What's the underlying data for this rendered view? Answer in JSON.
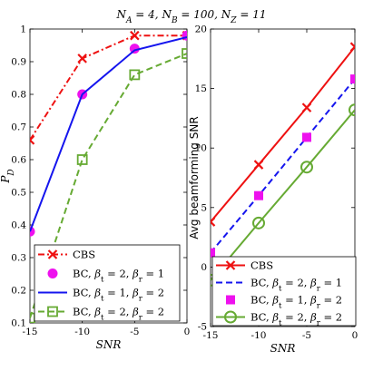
{
  "suptitle": "N_A = 4, N_B = 100, N_Z = 11",
  "chart_data": [
    {
      "type": "line",
      "xlabel": "SNR",
      "ylabel": "P_D",
      "xlim": [
        -15,
        0
      ],
      "ylim": [
        0.1,
        1.0
      ],
      "xticks": [
        "-15",
        "-10",
        "-5",
        "0"
      ],
      "yticks": [
        "0.1",
        "0.2",
        "0.3",
        "0.4",
        "0.5",
        "0.6",
        "0.7",
        "0.8",
        "0.9",
        "1"
      ],
      "grid": false,
      "legend_placement": "bottom-right",
      "x": [
        -15,
        -10,
        -5,
        0
      ],
      "series": [
        {
          "name": "CBS",
          "values": [
            0.66,
            0.91,
            0.98,
            0.98
          ],
          "color": "#ee1111",
          "linestyle": "dash-dot",
          "marker": "x"
        },
        {
          "name": "BC, β_t = 2, β_r = 1",
          "values": [
            0.38,
            0.8,
            0.94,
            0.98
          ],
          "color": "#ee11ee",
          "linestyle": "none",
          "marker": "circle-filled"
        },
        {
          "name": "BC, β_t = 1, β_r = 2",
          "values": [
            0.38,
            0.8,
            0.935,
            0.975
          ],
          "color": "#1515ee",
          "linestyle": "solid",
          "marker": "none"
        },
        {
          "name": "BC, β_t = 2, β_r = 2",
          "values": [
            0.115,
            0.6,
            0.86,
            0.925
          ],
          "color": "#66aa33",
          "linestyle": "dashed",
          "marker": "square-open"
        }
      ]
    },
    {
      "type": "line",
      "xlabel": "SNR",
      "ylabel": "Avg beamforming SNR",
      "xlim": [
        -15,
        0
      ],
      "ylim": [
        -5,
        20
      ],
      "xticks": [
        "-15",
        "-10",
        "-5",
        "0"
      ],
      "yticks": [
        "-5",
        "0",
        "5",
        "10",
        "15",
        "20"
      ],
      "grid": false,
      "legend_placement": "bottom-right",
      "x": [
        -15,
        -10,
        -5,
        0
      ],
      "series": [
        {
          "name": "CBS",
          "values": [
            3.8,
            8.6,
            13.4,
            18.5
          ],
          "color": "#ee1111",
          "linestyle": "solid",
          "marker": "x"
        },
        {
          "name": "BC, β_t = 2, β_r = 1",
          "values": [
            1.2,
            6.0,
            10.9,
            15.8
          ],
          "color": "#1515ee",
          "linestyle": "dashed",
          "marker": "none"
        },
        {
          "name": "BC, β_t = 1, β_r = 2",
          "values": [
            1.2,
            6.0,
            10.9,
            15.8
          ],
          "color": "#ee11ee",
          "linestyle": "none",
          "marker": "square-filled"
        },
        {
          "name": "BC, β_t = 2, β_r = 2",
          "values": [
            -1.1,
            3.7,
            8.4,
            13.2
          ],
          "color": "#66aa33",
          "linestyle": "solid",
          "marker": "circle-open"
        }
      ]
    }
  ]
}
